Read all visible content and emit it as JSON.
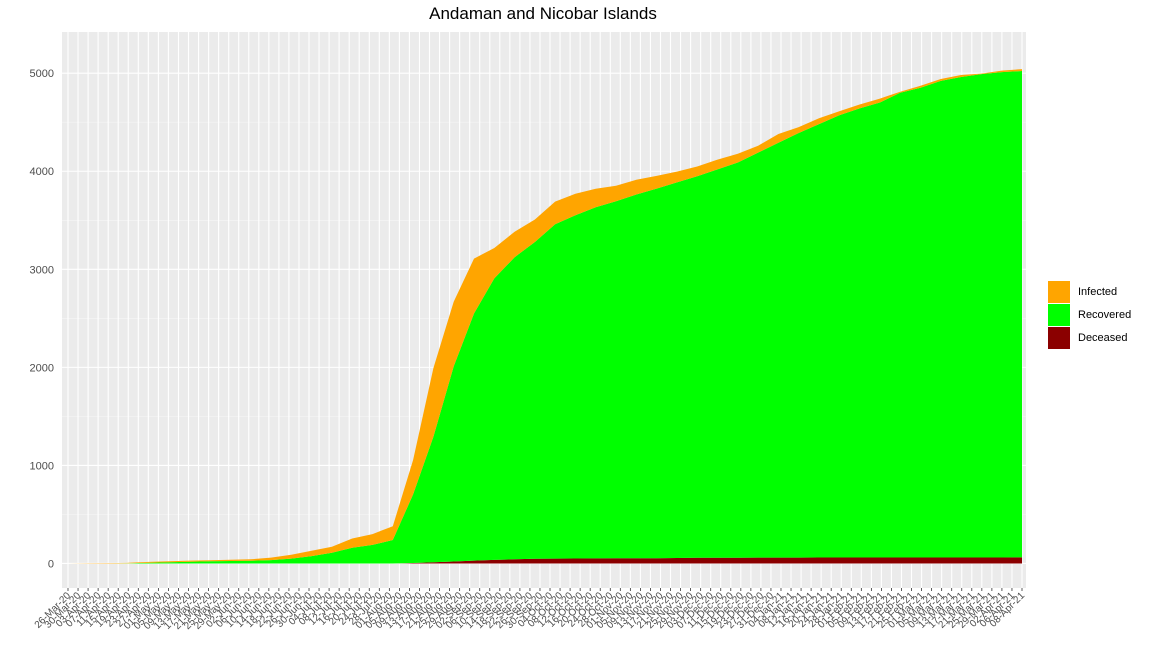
{
  "chart_data": {
    "type": "area",
    "stacked": true,
    "title": "Andaman and Nicobar Islands",
    "xlabel": "",
    "ylabel": "",
    "ylim": [
      -250,
      5420
    ],
    "yticks": [
      0,
      1000,
      2000,
      3000,
      4000,
      5000
    ],
    "x_tick_labels": [
      "26-Mar-20",
      "30-Mar-20",
      "03-Apr-20",
      "07-Apr-20",
      "11-Apr-20",
      "15-Apr-20",
      "19-Apr-20",
      "23-Apr-20",
      "27-Apr-20",
      "01-May-20",
      "05-May-20",
      "09-May-20",
      "13-May-20",
      "17-May-20",
      "21-May-20",
      "25-May-20",
      "29-May-20",
      "02-Jun-20",
      "06-Jun-20",
      "10-Jun-20",
      "14-Jun-20",
      "18-Jun-20",
      "22-Jun-20",
      "26-Jun-20",
      "30-Jun-20",
      "04-Jul-20",
      "08-Jul-20",
      "12-Jul-20",
      "16-Jul-20",
      "20-Jul-20",
      "24-Jul-20",
      "28-Jul-20",
      "01-Aug-20",
      "05-Aug-20",
      "09-Aug-20",
      "13-Aug-20",
      "17-Aug-20",
      "21-Aug-20",
      "25-Aug-20",
      "29-Aug-20",
      "02-Sep-20",
      "06-Sep-20",
      "10-Sep-20",
      "14-Sep-20",
      "18-Sep-20",
      "22-Sep-20",
      "26-Sep-20",
      "30-Sep-20",
      "04-Oct-20",
      "08-Oct-20",
      "12-Oct-20",
      "16-Oct-20",
      "20-Oct-20",
      "24-Oct-20",
      "28-Oct-20",
      "01-Nov-20",
      "05-Nov-20",
      "09-Nov-20",
      "13-Nov-20",
      "17-Nov-20",
      "21-Nov-20",
      "25-Nov-20",
      "29-Nov-20",
      "03-Dec-20",
      "07-Dec-20",
      "11-Dec-20",
      "15-Dec-20",
      "19-Dec-20",
      "23-Dec-20",
      "27-Dec-20",
      "31-Dec-20",
      "04-Jan-21",
      "08-Jan-21",
      "12-Jan-21",
      "16-Jan-21",
      "20-Jan-21",
      "24-Jan-21",
      "28-Jan-21",
      "01-Feb-21",
      "05-Feb-21",
      "09-Feb-21",
      "13-Feb-21",
      "17-Feb-21",
      "21-Feb-21",
      "25-Feb-21",
      "01-Mar-21",
      "05-Mar-21",
      "09-Mar-21",
      "13-Mar-21",
      "17-Mar-21",
      "21-Mar-21",
      "25-Mar-21",
      "29-Mar-21",
      "02-Apr-21",
      "06-Apr-21",
      "08-Apr-21"
    ],
    "x_index": [
      0,
      8,
      16,
      24,
      32,
      40,
      48,
      56,
      64,
      72,
      80,
      88,
      96,
      104,
      112,
      120,
      128,
      136,
      144,
      152,
      160,
      168,
      176,
      184,
      192,
      200,
      208,
      216,
      224,
      232,
      240,
      248,
      256,
      264,
      272,
      280,
      288,
      296,
      304,
      312,
      320,
      328,
      336,
      344,
      352,
      360,
      368,
      376
    ],
    "series": [
      {
        "name": "Deceased",
        "color": "#8b0000",
        "values": [
          0,
          0,
          0,
          0,
          0,
          0,
          0,
          0,
          0,
          0,
          0,
          0,
          0,
          0,
          0,
          0,
          0,
          5,
          12,
          20,
          29,
          37,
          43,
          48,
          50,
          51,
          52,
          53,
          53,
          53,
          56,
          58,
          59,
          59,
          60,
          60,
          60,
          61,
          61,
          61,
          61,
          61,
          61,
          61,
          61,
          61,
          61,
          62
        ]
      },
      {
        "name": "Recovered",
        "color": "#00ff00",
        "values": [
          0,
          0,
          0,
          2,
          8,
          13,
          17,
          22,
          25,
          28,
          35,
          50,
          75,
          110,
          160,
          190,
          240,
          700,
          1280,
          1990,
          2520,
          2870,
          3080,
          3230,
          3410,
          3500,
          3580,
          3640,
          3710,
          3770,
          3830,
          3890,
          3960,
          4030,
          4130,
          4230,
          4330,
          4420,
          4510,
          4580,
          4640,
          4740,
          4790,
          4860,
          4900,
          4930,
          4950,
          4960
        ]
      },
      {
        "name": "Infected",
        "color": "#ffa500",
        "values": [
          0,
          2,
          4,
          5,
          8,
          10,
          12,
          10,
          13,
          15,
          25,
          40,
          55,
          60,
          95,
          110,
          140,
          350,
          700,
          660,
          560,
          310,
          260,
          230,
          230,
          220,
          190,
          160,
          150,
          130,
          110,
          100,
          100,
          90,
          70,
          90,
          60,
          60,
          40,
          40,
          40,
          10,
          20,
          20,
          20,
          5,
          15,
          20
        ]
      }
    ],
    "legend": [
      {
        "name": "Infected",
        "color": "#ffa500"
      },
      {
        "name": "Recovered",
        "color": "#00ff00"
      },
      {
        "name": "Deceased",
        "color": "#8b0000"
      }
    ],
    "legend_position": "right",
    "grid": true,
    "background": "#ebebeb"
  }
}
